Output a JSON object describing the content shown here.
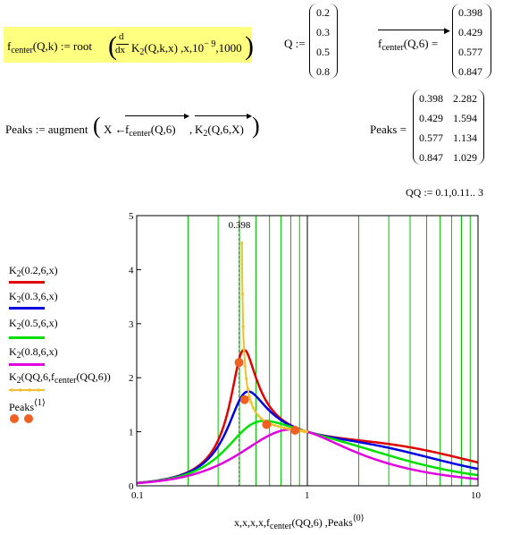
{
  "definitions": {
    "fcenter_def": {
      "lhs": "f",
      "lhs_sub": "center",
      "lhs_args": "(Q,k) := root",
      "d_num": "d",
      "d_den": "dx",
      "body": "K",
      "body_sub": "2",
      "body_args": "(Q,k,x) ,x,10",
      "exp": "− 9",
      "tail": ",1000"
    },
    "q_def": {
      "label": "Q :=",
      "values": [
        "0.2",
        "0.3",
        "0.5",
        "0.8"
      ]
    },
    "fcenter_eval": {
      "label_f": "f",
      "label_sub": "center",
      "label_args": "(Q,6) =",
      "values": [
        "0.398",
        "0.429",
        "0.577",
        "0.847"
      ]
    },
    "peaks_def": {
      "lhs": "Peaks := augment",
      "arg1": "X ← ",
      "f": "f",
      "f_sub": "center",
      "f_args": "(Q,6)",
      "comma": ",",
      "k": "K",
      "k_sub": "2",
      "k_args": "(Q,6,X)"
    },
    "peaks_eval": {
      "label": "Peaks =",
      "rows": [
        [
          "0.398",
          "2.282"
        ],
        [
          "0.429",
          "1.594"
        ],
        [
          "0.577",
          "1.134"
        ],
        [
          "0.847",
          "1.029"
        ]
      ]
    },
    "qq_def": {
      "text": "QQ := 0.1,0.11.. 3"
    }
  },
  "legend": [
    {
      "name": "K",
      "sub": "2",
      "args": "(0.2,6,x)",
      "color": "#e00000"
    },
    {
      "name": "K",
      "sub": "2",
      "args": "(0.3,6,x)",
      "color": "#0000e0"
    },
    {
      "name": "K",
      "sub": "2",
      "args": "(0.5,6,x)",
      "color": "#00e000"
    },
    {
      "name": "K",
      "sub": "2",
      "args": "(0.8,6,x)",
      "color": "#e000e0"
    },
    {
      "name": "K",
      "sub": "2",
      "args": "(QQ,6,f",
      "args_sub": "center",
      "args_tail": "(QQ,6))",
      "color": "#f0c030"
    },
    {
      "name": "Peaks",
      "sup": "⟨1⟩",
      "color": "#f06020"
    }
  ],
  "xaxis_label": {
    "pre": "x,x,x,x,f",
    "sub": "center",
    "mid": "(QQ,6) ,Peaks",
    "sup": "⟨0⟩"
  },
  "marker_label": "0.398",
  "chart_data": {
    "type": "line",
    "xscale": "log",
    "xlim": [
      0.1,
      10
    ],
    "ylim": [
      0,
      5
    ],
    "xticks": [
      "0.1",
      "1",
      "10"
    ],
    "yticks": [
      "0",
      "1",
      "2",
      "3",
      "4",
      "5"
    ],
    "vertical_marker_x": 0.398,
    "series": [
      {
        "Q": 0.2,
        "k": 6,
        "color": "#e00000"
      },
      {
        "Q": 0.3,
        "k": 6,
        "color": "#0000e0"
      },
      {
        "Q": 0.5,
        "k": 6,
        "color": "#00e000"
      },
      {
        "Q": 0.8,
        "k": 6,
        "color": "#e000e0"
      }
    ],
    "peak_curve": {
      "Q_from": 0.1,
      "Q_to": 3,
      "Q_step": 0.01,
      "color": "#f0c030"
    },
    "peaks": [
      {
        "x": 0.398,
        "y": 2.282
      },
      {
        "x": 0.429,
        "y": 1.594
      },
      {
        "x": 0.577,
        "y": 1.134
      },
      {
        "x": 0.847,
        "y": 1.029
      }
    ],
    "peak_color": "#f06020"
  }
}
